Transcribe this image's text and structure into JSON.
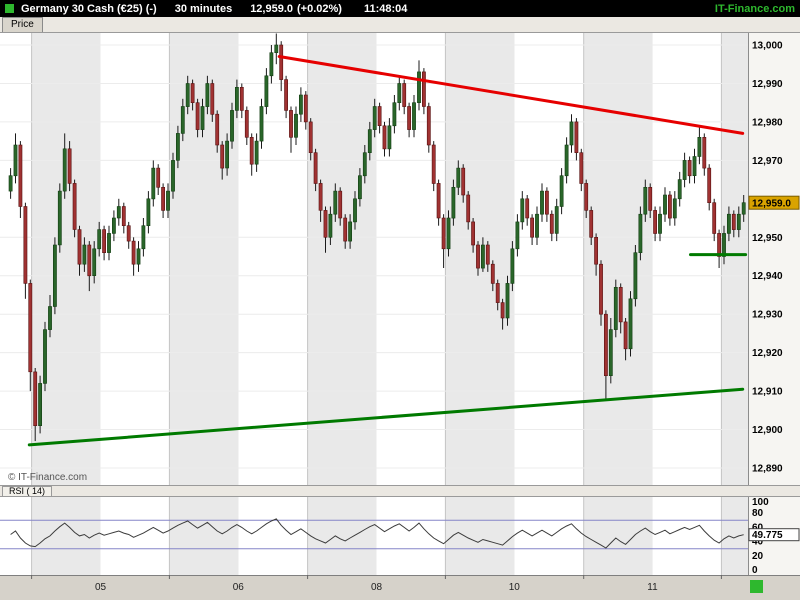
{
  "header": {
    "instrument": "Germany 30 Cash (€25) (-)",
    "timeframe": "30 minutes",
    "last_price": "12,959.0",
    "change": "(+0.02%)",
    "time": "11:48:04",
    "brand": "IT-Finance.com",
    "brand_color": "#2eb82e"
  },
  "price_panel": {
    "tab_label": "Price",
    "copyright": "© IT-Finance.com",
    "badge": {
      "label": "12,959.0",
      "value": 12959.0,
      "bg": "#d9a300",
      "border": "#7a5c00"
    },
    "axis_labels": [
      {
        "label": "13,000",
        "value": 13000
      },
      {
        "label": "12,990",
        "value": 12990
      },
      {
        "label": "12,980",
        "value": 12980
      },
      {
        "label": "12,970",
        "value": 12970
      },
      {
        "label": "12,950",
        "value": 12950
      },
      {
        "label": "12,940",
        "value": 12940
      },
      {
        "label": "12,930",
        "value": 12930
      },
      {
        "label": "12,920",
        "value": 12920
      },
      {
        "label": "12,910",
        "value": 12910
      },
      {
        "label": "12,900",
        "value": 12900
      },
      {
        "label": "12,890",
        "value": 12890
      }
    ]
  },
  "rsi_panel": {
    "tab_label": "RSI ( 14)",
    "badge": {
      "label": "49.775",
      "value": 49.775
    },
    "axis_labels": [
      100,
      80,
      60,
      40,
      20,
      0
    ]
  },
  "chart_data": {
    "type": "candlestick",
    "title": "Germany 30 Cash (€25) - 30 minutes",
    "ylabel": "Price",
    "ylim": [
      12885,
      13004
    ],
    "candle_format": "ohlc",
    "style": {
      "up": "#2a662a",
      "up_border": "#123d12",
      "down": "#a03232",
      "down_border": "#571010",
      "wick": "#1a1a1a",
      "band": "#e9e9e9",
      "day_line": "#c4c4c4",
      "grid_line": "#ececec",
      "rsi_line": "#3c3c3c",
      "rsi_guide": "#8585c8"
    },
    "sessions": {
      "boundaries_i": [
        4.6,
        32.6,
        60.7,
        88.7,
        116.8,
        144.8
      ],
      "labels": [
        {
          "text": "05",
          "i": 18.6
        },
        {
          "text": "06",
          "i": 46.6
        },
        {
          "text": "08",
          "i": 74.7
        },
        {
          "text": "10",
          "i": 102.7
        },
        {
          "text": "11",
          "i": 130.8
        }
      ]
    },
    "trendlines": [
      {
        "name": "resistance-trendline",
        "color": "#e60000",
        "width": 3,
        "from": {
          "i": 54.6,
          "price": 12997
        },
        "to": {
          "i": 148.8,
          "price": 12977
        }
      },
      {
        "name": "support-trendline",
        "color": "#007a00",
        "width": 3,
        "from": {
          "i": 3.8,
          "price": 12896
        },
        "to": {
          "i": 148.8,
          "price": 12910.5
        }
      },
      {
        "name": "support-level-line",
        "color": "#007a00",
        "width": 3,
        "from": {
          "i": 138.2,
          "price": 12945.5
        },
        "to": {
          "i": 149.4,
          "price": 12945.5
        }
      }
    ],
    "candles": [
      [
        12962,
        12968,
        12960,
        12966
      ],
      [
        12966,
        12977,
        12964,
        12974
      ],
      [
        12974,
        12975,
        12955,
        12958
      ],
      [
        12958,
        12959,
        12934,
        12938
      ],
      [
        12938,
        12939,
        12910,
        12915
      ],
      [
        12915,
        12916,
        12897,
        12901
      ],
      [
        12901,
        12914,
        12899,
        12912
      ],
      [
        12912,
        12928,
        12910,
        12926
      ],
      [
        12926,
        12935,
        12924,
        12932
      ],
      [
        12932,
        12950,
        12930,
        12948
      ],
      [
        12948,
        12964,
        12946,
        12962
      ],
      [
        12962,
        12977,
        12960,
        12973
      ],
      [
        12973,
        12975,
        12962,
        12964
      ],
      [
        12964,
        12965,
        12950,
        12952
      ],
      [
        12952,
        12953,
        12940,
        12943
      ],
      [
        12943,
        12950,
        12941,
        12948
      ],
      [
        12948,
        12949,
        12936,
        12940
      ],
      [
        12940,
        12949,
        12938,
        12947
      ],
      [
        12947,
        12954,
        12945,
        12952
      ],
      [
        12952,
        12953,
        12944,
        12946
      ],
      [
        12946,
        12953,
        12944,
        12951
      ],
      [
        12951,
        12957,
        12949,
        12955
      ],
      [
        12955,
        12960,
        12953,
        12958
      ],
      [
        12958,
        12959,
        12951,
        12953
      ],
      [
        12953,
        12954,
        12947,
        12949
      ],
      [
        12949,
        12950,
        12940,
        12943
      ],
      [
        12943,
        12949,
        12941,
        12947
      ],
      [
        12947,
        12955,
        12945,
        12953
      ],
      [
        12953,
        12962,
        12951,
        12960
      ],
      [
        12960,
        12970,
        12958,
        12968
      ],
      [
        12968,
        12969,
        12961,
        12963
      ],
      [
        12963,
        12964,
        12955,
        12957
      ],
      [
        12957,
        12964,
        12955,
        12962
      ],
      [
        12962,
        12972,
        12960,
        12970
      ],
      [
        12970,
        12979,
        12968,
        12977
      ],
      [
        12977,
        12986,
        12975,
        12984
      ],
      [
        12984,
        12992,
        12982,
        12990
      ],
      [
        12990,
        12991,
        12983,
        12985
      ],
      [
        12985,
        12986,
        12976,
        12978
      ],
      [
        12978,
        12986,
        12976,
        12984
      ],
      [
        12984,
        12992,
        12982,
        12990
      ],
      [
        12990,
        12991,
        12980,
        12982
      ],
      [
        12982,
        12983,
        12972,
        12974
      ],
      [
        12974,
        12975,
        12965,
        12968
      ],
      [
        12968,
        12977,
        12966,
        12975
      ],
      [
        12975,
        12985,
        12973,
        12983
      ],
      [
        12983,
        12991,
        12981,
        12989
      ],
      [
        12989,
        12990,
        12981,
        12983
      ],
      [
        12983,
        12984,
        12974,
        12976
      ],
      [
        12976,
        12977,
        12966,
        12969
      ],
      [
        12969,
        12977,
        12967,
        12975
      ],
      [
        12975,
        12986,
        12973,
        12984
      ],
      [
        12984,
        12994,
        12982,
        12992
      ],
      [
        12992,
        13000,
        12990,
        12998
      ],
      [
        12998,
        13003,
        12995,
        13000
      ],
      [
        13000,
        13001,
        12988,
        12991
      ],
      [
        12991,
        12992,
        12981,
        12983
      ],
      [
        12983,
        12984,
        12972,
        12976
      ],
      [
        12976,
        12984,
        12974,
        12982
      ],
      [
        12982,
        12989,
        12980,
        12987
      ],
      [
        12987,
        12988,
        12978,
        12980
      ],
      [
        12980,
        12981,
        12970,
        12972
      ],
      [
        12972,
        12973,
        12962,
        12964
      ],
      [
        12964,
        12965,
        12954,
        12957
      ],
      [
        12957,
        12958,
        12946,
        12950
      ],
      [
        12950,
        12958,
        12948,
        12956
      ],
      [
        12956,
        12964,
        12954,
        12962
      ],
      [
        12962,
        12963,
        12953,
        12955
      ],
      [
        12955,
        12956,
        12947,
        12949
      ],
      [
        12949,
        12956,
        12947,
        12954
      ],
      [
        12954,
        12962,
        12952,
        12960
      ],
      [
        12960,
        12968,
        12958,
        12966
      ],
      [
        12966,
        12974,
        12964,
        12972
      ],
      [
        12972,
        12980,
        12970,
        12978
      ],
      [
        12978,
        12986,
        12976,
        12984
      ],
      [
        12984,
        12985,
        12977,
        12979
      ],
      [
        12979,
        12980,
        12971,
        12973
      ],
      [
        12973,
        12981,
        12971,
        12979
      ],
      [
        12979,
        12987,
        12977,
        12985
      ],
      [
        12985,
        12992,
        12983,
        12990
      ],
      [
        12990,
        12991,
        12982,
        12984
      ],
      [
        12984,
        12985,
        12976,
        12978
      ],
      [
        12978,
        12987,
        12976,
        12985
      ],
      [
        12985,
        12996,
        12983,
        12993
      ],
      [
        12993,
        12994,
        12982,
        12984
      ],
      [
        12984,
        12985,
        12972,
        12974
      ],
      [
        12974,
        12975,
        12962,
        12964
      ],
      [
        12964,
        12965,
        12953,
        12955
      ],
      [
        12955,
        12956,
        12942,
        12947
      ],
      [
        12947,
        12957,
        12945,
        12955
      ],
      [
        12955,
        12965,
        12953,
        12963
      ],
      [
        12963,
        12970,
        12961,
        12968
      ],
      [
        12968,
        12969,
        12959,
        12961
      ],
      [
        12961,
        12962,
        12952,
        12954
      ],
      [
        12954,
        12955,
        12946,
        12948
      ],
      [
        12948,
        12949,
        12940,
        12942
      ],
      [
        12942,
        12950,
        12941,
        12948
      ],
      [
        12948,
        12949,
        12941,
        12943
      ],
      [
        12943,
        12944,
        12936,
        12938
      ],
      [
        12938,
        12939,
        12931,
        12933
      ],
      [
        12933,
        12934,
        12926,
        12929
      ],
      [
        12929,
        12940,
        12927,
        12938
      ],
      [
        12938,
        12949,
        12936,
        12947
      ],
      [
        12947,
        12956,
        12945,
        12954
      ],
      [
        12954,
        12962,
        12952,
        12960
      ],
      [
        12960,
        12961,
        12953,
        12955
      ],
      [
        12955,
        12956,
        12948,
        12950
      ],
      [
        12950,
        12958,
        12948,
        12956
      ],
      [
        12956,
        12964,
        12954,
        12962
      ],
      [
        12962,
        12963,
        12954,
        12956
      ],
      [
        12956,
        12957,
        12949,
        12951
      ],
      [
        12951,
        12960,
        12949,
        12958
      ],
      [
        12958,
        12968,
        12956,
        12966
      ],
      [
        12966,
        12976,
        12964,
        12974
      ],
      [
        12974,
        12982,
        12972,
        12980
      ],
      [
        12980,
        12981,
        12970,
        12972
      ],
      [
        12972,
        12973,
        12962,
        12964
      ],
      [
        12964,
        12965,
        12955,
        12957
      ],
      [
        12957,
        12958,
        12948,
        12950
      ],
      [
        12950,
        12951,
        12940,
        12943
      ],
      [
        12943,
        12944,
        12927,
        12930
      ],
      [
        12930,
        12931,
        12908,
        12914
      ],
      [
        12914,
        12929,
        12912,
        12926
      ],
      [
        12926,
        12939,
        12924,
        12937
      ],
      [
        12937,
        12938,
        12925,
        12928
      ],
      [
        12928,
        12929,
        12918,
        12921
      ],
      [
        12921,
        12936,
        12919,
        12934
      ],
      [
        12934,
        12948,
        12932,
        12946
      ],
      [
        12946,
        12958,
        12944,
        12956
      ],
      [
        12956,
        12965,
        12954,
        12963
      ],
      [
        12963,
        12964,
        12955,
        12957
      ],
      [
        12957,
        12958,
        12949,
        12951
      ],
      [
        12951,
        12958,
        12949,
        12956
      ],
      [
        12956,
        12963,
        12954,
        12961
      ],
      [
        12961,
        12962,
        12953,
        12955
      ],
      [
        12955,
        12962,
        12953,
        12960
      ],
      [
        12960,
        12967,
        12958,
        12965
      ],
      [
        12965,
        12972,
        12963,
        12970
      ],
      [
        12970,
        12971,
        12964,
        12966
      ],
      [
        12966,
        12973,
        12964,
        12971
      ],
      [
        12971,
        12979,
        12969,
        12976
      ],
      [
        12976,
        12977,
        12966,
        12968
      ],
      [
        12968,
        12969,
        12957,
        12959
      ],
      [
        12959,
        12960,
        12949,
        12951
      ],
      [
        12951,
        12952,
        12942,
        12945
      ],
      [
        12945,
        12953,
        12943,
        12951
      ],
      [
        12951,
        12958,
        12949,
        12956
      ],
      [
        12956,
        12957,
        12950,
        12952
      ],
      [
        12952,
        12958,
        12950,
        12956
      ],
      [
        12956,
        12961,
        12954,
        12959
      ]
    ],
    "rsi": {
      "period_label": "RSI ( 14)",
      "range": [
        0,
        100
      ],
      "guides": [
        70,
        30
      ],
      "last": 49.775,
      "values": [
        50,
        55,
        45,
        38,
        34,
        33,
        38,
        44,
        48,
        55,
        61,
        66,
        60,
        53,
        48,
        50,
        45,
        49,
        52,
        49,
        51,
        53,
        55,
        52,
        50,
        46,
        49,
        52,
        56,
        60,
        56,
        52,
        55,
        59,
        63,
        66,
        69,
        64,
        59,
        63,
        67,
        61,
        55,
        51,
        55,
        60,
        64,
        60,
        55,
        51,
        55,
        60,
        65,
        69,
        72,
        63,
        56,
        50,
        54,
        58,
        53,
        48,
        44,
        41,
        38,
        43,
        48,
        44,
        41,
        45,
        49,
        53,
        57,
        61,
        64,
        59,
        54,
        58,
        62,
        65,
        60,
        55,
        60,
        66,
        58,
        51,
        45,
        41,
        37,
        43,
        49,
        53,
        49,
        45,
        42,
        39,
        43,
        41,
        39,
        37,
        35,
        41,
        47,
        52,
        56,
        52,
        48,
        52,
        56,
        52,
        48,
        53,
        58,
        62,
        65,
        58,
        52,
        47,
        43,
        39,
        35,
        31,
        38,
        45,
        40,
        36,
        43,
        50,
        55,
        59,
        54,
        50,
        53,
        56,
        51,
        54,
        57,
        60,
        57,
        60,
        63,
        55,
        48,
        42,
        38,
        44,
        48,
        45,
        48,
        49.775
      ]
    }
  }
}
